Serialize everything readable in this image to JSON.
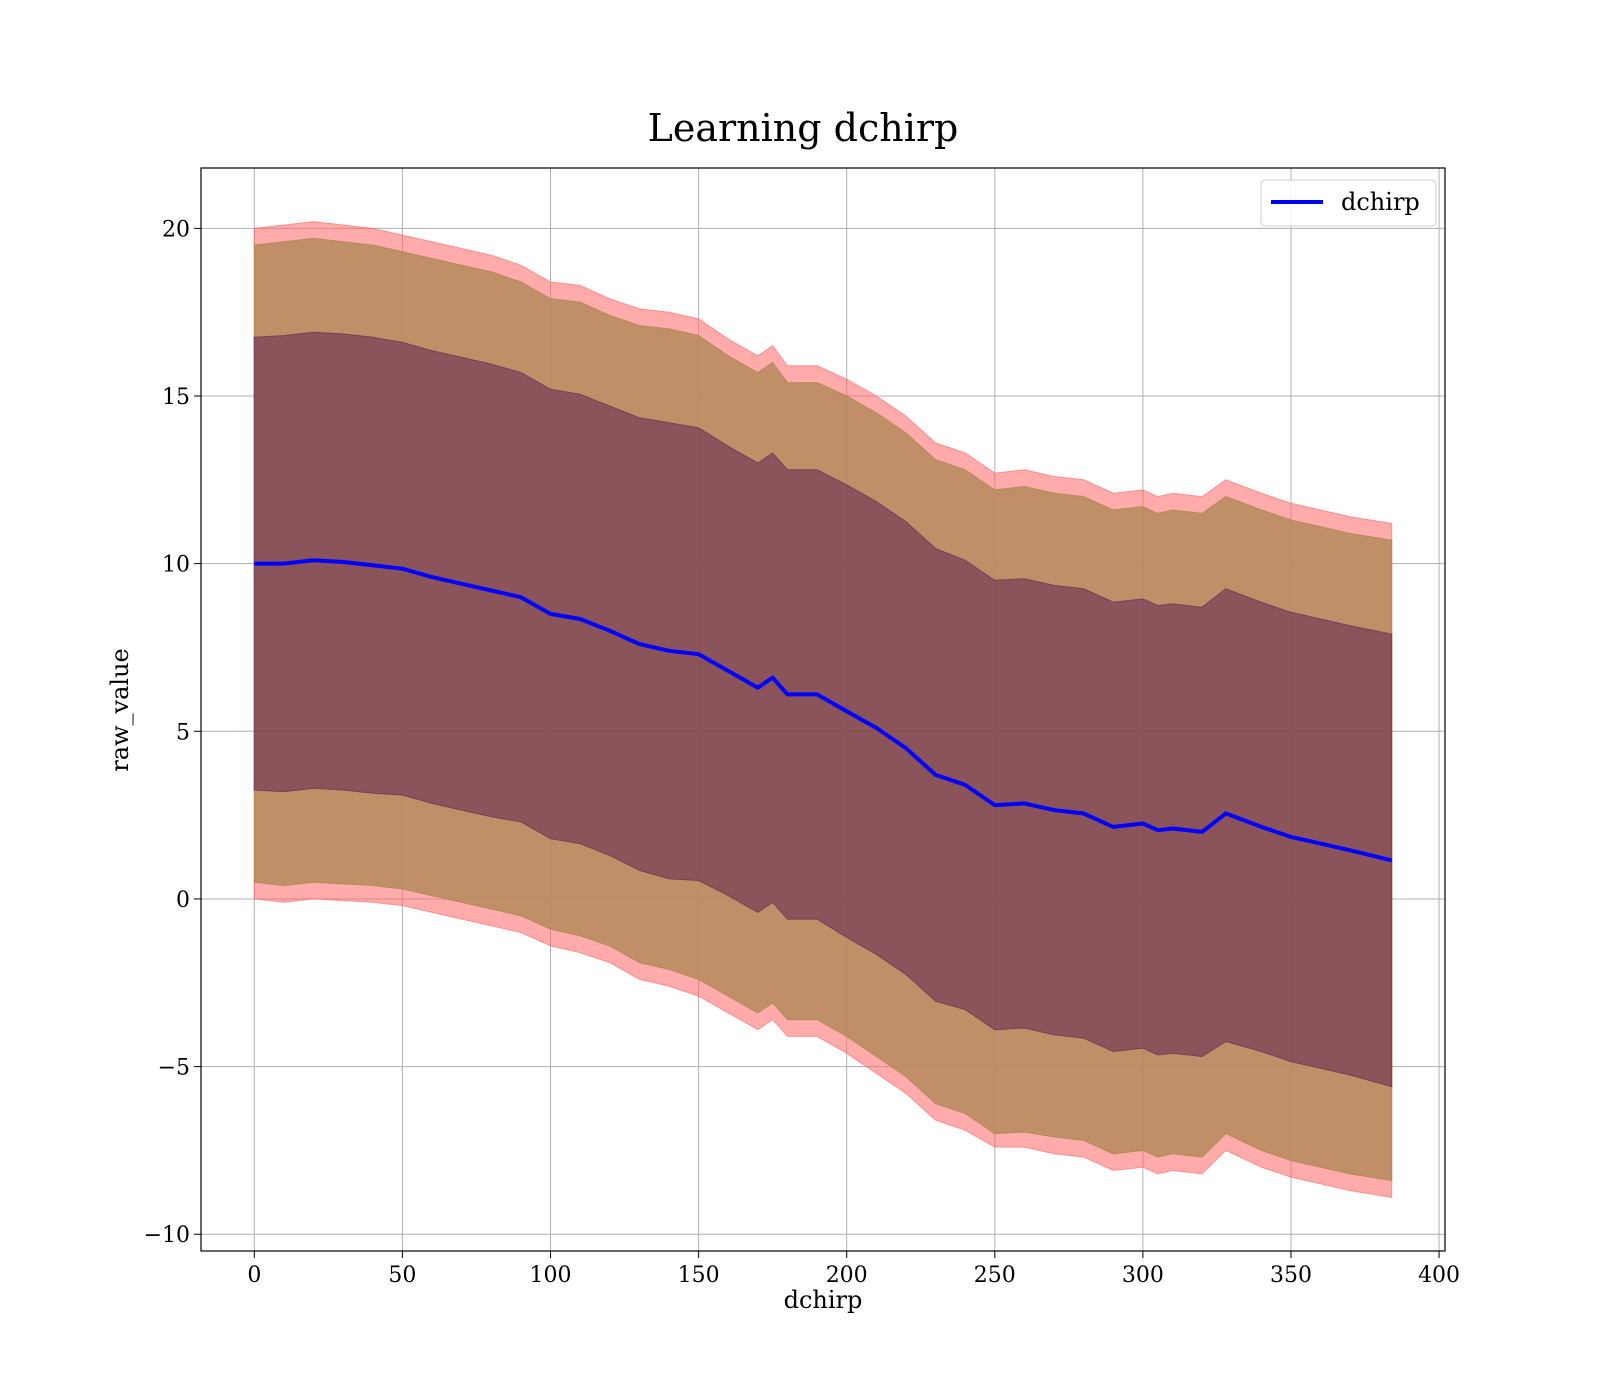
{
  "chart_data": {
    "type": "area",
    "title": "Learning dchirp",
    "xlabel": "dchirp",
    "ylabel": "raw_value",
    "xlim": [
      -18,
      402
    ],
    "ylim": [
      -10.5,
      21.8
    ],
    "xticks": [
      0,
      50,
      100,
      150,
      200,
      250,
      300,
      350,
      400
    ],
    "yticks": [
      -10,
      -5,
      0,
      5,
      10,
      15,
      20
    ],
    "ytick_labels": [
      "−10",
      "−5",
      "0",
      "5",
      "10",
      "15",
      "20"
    ],
    "grid": true,
    "legend": {
      "placement": "top-right",
      "entries": [
        "dchirp"
      ]
    },
    "colors": {
      "line": "#0000ff",
      "outer_band": "#ff6666",
      "middle_band": "#b58a5a",
      "inner_band": "#7a3f55"
    },
    "x": [
      0,
      10,
      20,
      30,
      40,
      50,
      60,
      70,
      80,
      90,
      100,
      110,
      120,
      130,
      140,
      150,
      160,
      170,
      175,
      180,
      190,
      200,
      210,
      220,
      230,
      240,
      250,
      260,
      270,
      280,
      290,
      300,
      305,
      310,
      320,
      328,
      340,
      350,
      360,
      370,
      384
    ],
    "series": [
      {
        "name": "dchirp",
        "role": "mean",
        "values": [
          10.0,
          10.0,
          10.1,
          10.05,
          9.95,
          9.85,
          9.6,
          9.4,
          9.2,
          9.0,
          8.5,
          8.35,
          8.0,
          7.6,
          7.4,
          7.3,
          6.8,
          6.3,
          6.6,
          6.1,
          6.1,
          5.6,
          5.1,
          4.5,
          3.7,
          3.4,
          2.8,
          2.85,
          2.65,
          2.55,
          2.15,
          2.25,
          2.05,
          2.1,
          2.0,
          2.55,
          2.15,
          1.85,
          1.65,
          1.45,
          1.15
        ]
      },
      {
        "role": "band_outer_upper",
        "values": [
          20.0,
          20.1,
          20.2,
          20.1,
          20.0,
          19.8,
          19.6,
          19.4,
          19.2,
          18.9,
          18.4,
          18.3,
          17.9,
          17.6,
          17.5,
          17.3,
          16.7,
          16.2,
          16.5,
          15.9,
          15.9,
          15.5,
          15.0,
          14.4,
          13.6,
          13.3,
          12.7,
          12.8,
          12.6,
          12.5,
          12.1,
          12.2,
          12.0,
          12.1,
          12.0,
          12.5,
          12.1,
          11.8,
          11.6,
          11.4,
          11.2
        ]
      },
      {
        "role": "band_middle_upper",
        "values": [
          19.5,
          19.6,
          19.7,
          19.6,
          19.5,
          19.3,
          19.1,
          18.9,
          18.7,
          18.4,
          17.9,
          17.8,
          17.4,
          17.1,
          17.0,
          16.8,
          16.2,
          15.7,
          16.0,
          15.4,
          15.4,
          15.0,
          14.5,
          13.9,
          13.1,
          12.8,
          12.2,
          12.3,
          12.1,
          12.0,
          11.6,
          11.7,
          11.5,
          11.6,
          11.5,
          12.0,
          11.6,
          11.3,
          11.1,
          10.9,
          10.7
        ]
      },
      {
        "role": "band_inner_upper",
        "values": [
          16.75,
          16.8,
          16.9,
          16.85,
          16.75,
          16.6,
          16.35,
          16.15,
          15.95,
          15.7,
          15.2,
          15.05,
          14.7,
          14.35,
          14.2,
          14.05,
          13.5,
          13.0,
          13.3,
          12.8,
          12.8,
          12.35,
          11.85,
          11.25,
          10.45,
          10.1,
          9.5,
          9.55,
          9.35,
          9.25,
          8.85,
          8.95,
          8.75,
          8.8,
          8.7,
          9.25,
          8.85,
          8.55,
          8.35,
          8.15,
          7.9
        ]
      },
      {
        "role": "band_inner_lower",
        "values": [
          3.25,
          3.2,
          3.3,
          3.25,
          3.15,
          3.1,
          2.85,
          2.65,
          2.45,
          2.3,
          1.8,
          1.65,
          1.3,
          0.85,
          0.6,
          0.55,
          0.1,
          -0.4,
          -0.1,
          -0.6,
          -0.6,
          -1.15,
          -1.65,
          -2.25,
          -3.05,
          -3.3,
          -3.9,
          -3.85,
          -4.05,
          -4.15,
          -4.55,
          -4.45,
          -4.65,
          -4.6,
          -4.7,
          -4.25,
          -4.55,
          -4.85,
          -5.05,
          -5.25,
          -5.6
        ]
      },
      {
        "role": "band_middle_lower",
        "values": [
          0.5,
          0.4,
          0.5,
          0.45,
          0.4,
          0.3,
          0.1,
          -0.1,
          -0.3,
          -0.5,
          -0.9,
          -1.1,
          -1.4,
          -1.9,
          -2.1,
          -2.4,
          -2.9,
          -3.4,
          -3.1,
          -3.6,
          -3.6,
          -4.1,
          -4.7,
          -5.3,
          -6.1,
          -6.4,
          -7.0,
          -6.95,
          -7.1,
          -7.2,
          -7.6,
          -7.5,
          -7.7,
          -7.6,
          -7.7,
          -7.0,
          -7.5,
          -7.8,
          -8.0,
          -8.2,
          -8.4
        ]
      },
      {
        "role": "band_outer_lower",
        "values": [
          0.0,
          -0.1,
          0.0,
          -0.05,
          -0.1,
          -0.2,
          -0.4,
          -0.6,
          -0.8,
          -1.0,
          -1.4,
          -1.6,
          -1.9,
          -2.4,
          -2.6,
          -2.9,
          -3.4,
          -3.9,
          -3.6,
          -4.1,
          -4.1,
          -4.6,
          -5.2,
          -5.8,
          -6.6,
          -6.9,
          -7.4,
          -7.4,
          -7.6,
          -7.7,
          -8.1,
          -8.0,
          -8.2,
          -8.1,
          -8.2,
          -7.5,
          -8.0,
          -8.3,
          -8.5,
          -8.7,
          -8.9
        ]
      }
    ]
  }
}
